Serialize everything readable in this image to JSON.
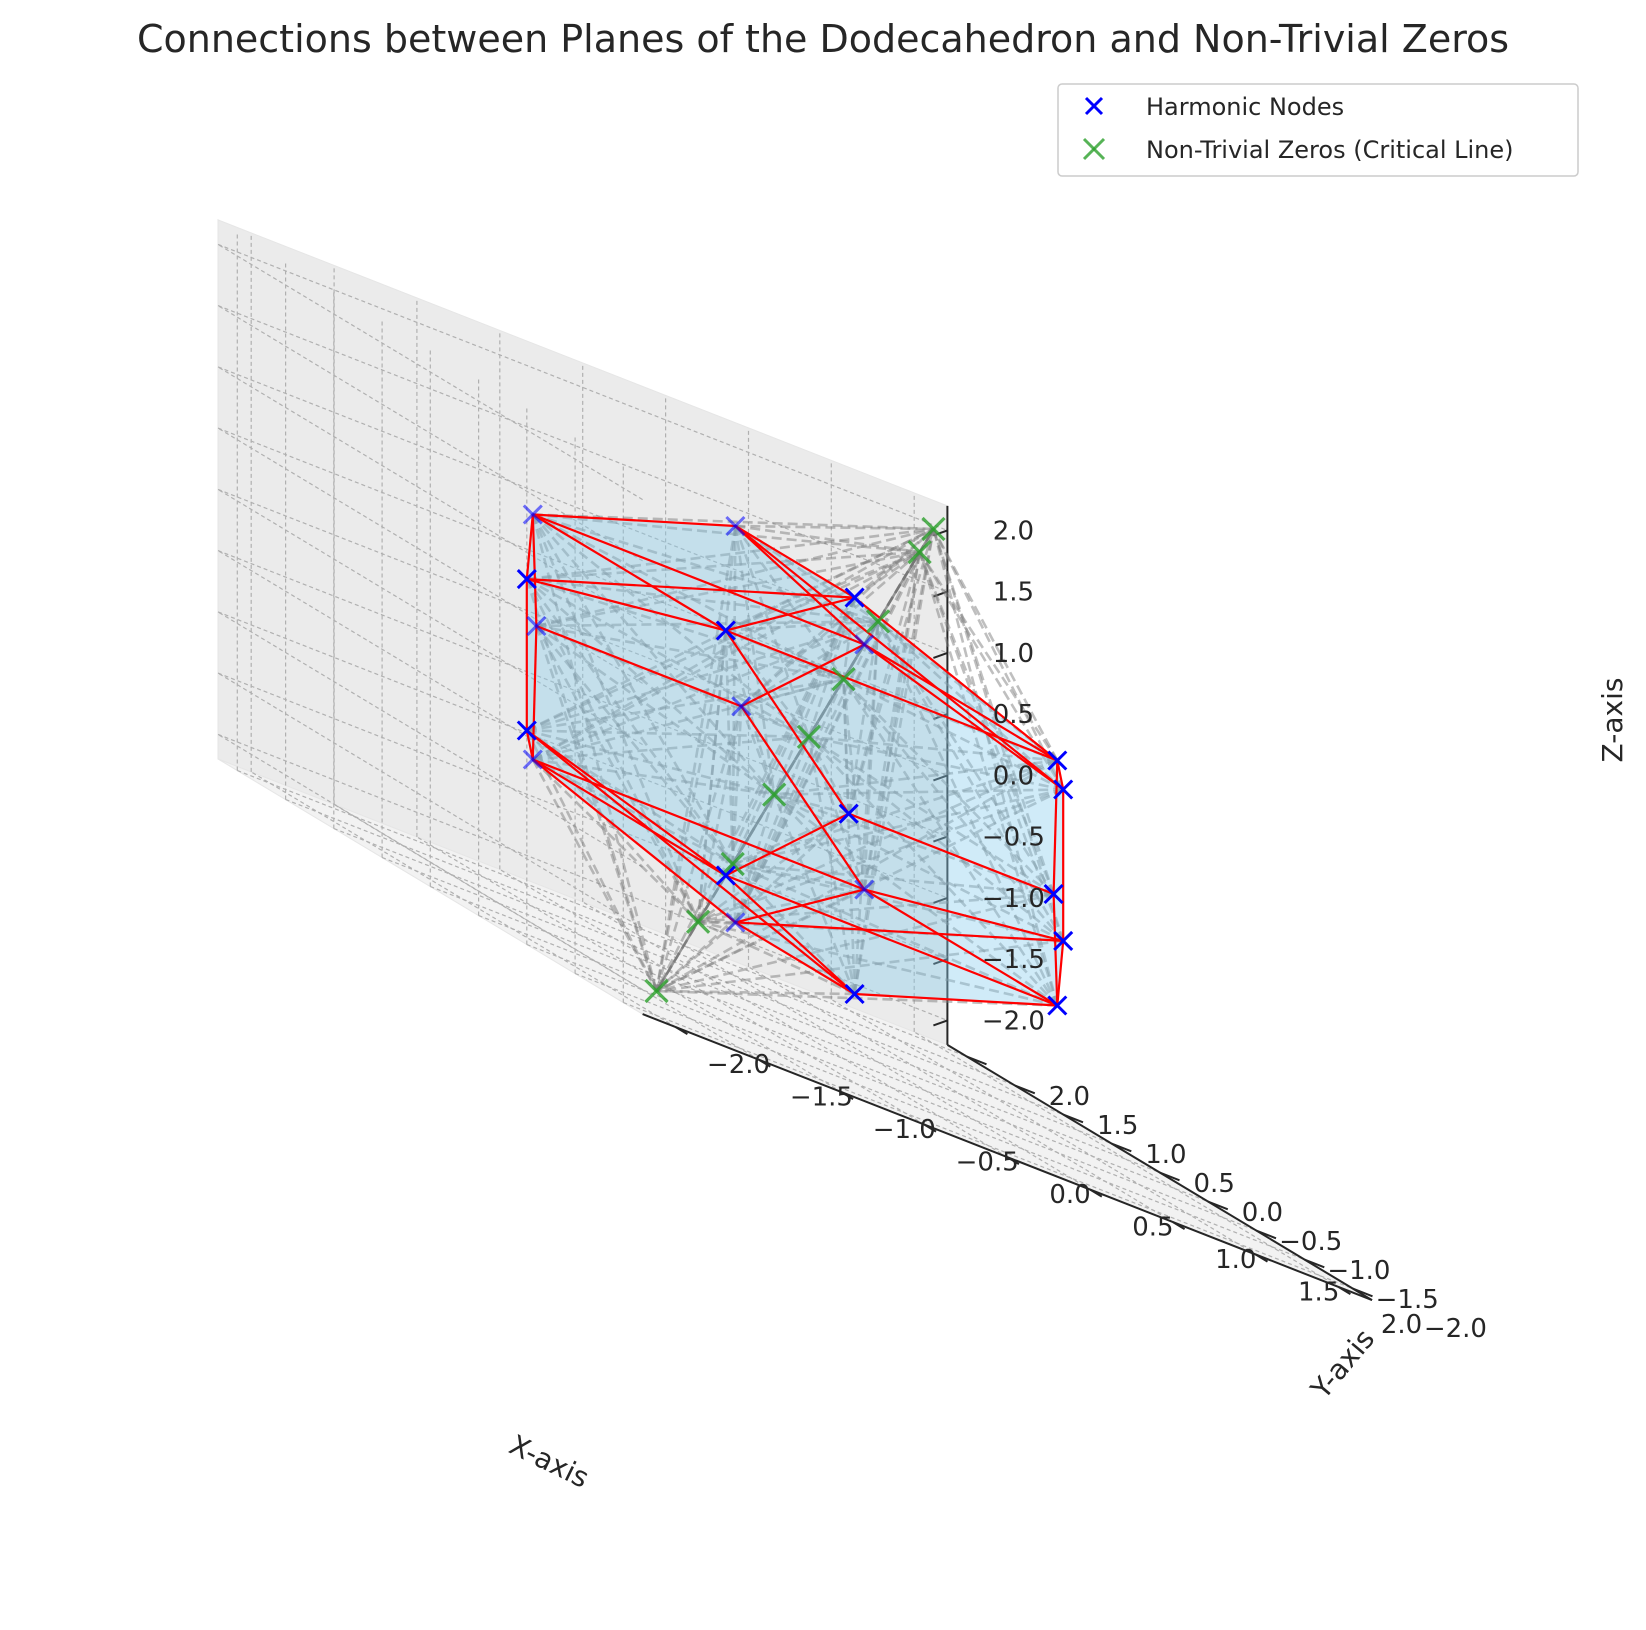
{
  "chart_data": {
    "type": "scatter",
    "projection": "3d",
    "title": "Connections between Planes of the Dodecahedron and Non-Trivial Zeros",
    "xlabel": "X-axis",
    "ylabel": "Y-axis",
    "zlabel": "Z-axis",
    "xlim": [
      -2.2,
      2.2
    ],
    "ylim": [
      -2.2,
      2.2
    ],
    "zlim": [
      -2.2,
      2.2
    ],
    "ticks": [
      -2.0,
      -1.5,
      -1.0,
      -0.5,
      0.0,
      0.5,
      1.0,
      1.5,
      2.0
    ],
    "tick_labels": [
      "−2.0",
      "−1.5",
      "−1.0",
      "−0.5",
      "0.0",
      "0.5",
      "1.0",
      "1.5",
      "2.0"
    ],
    "grid": true,
    "legend_position": "top-right",
    "series": [
      {
        "name": "Harmonic Nodes",
        "marker": "x",
        "color": "#0000ff",
        "points": [
          [
            1,
            1,
            1
          ],
          [
            1,
            1,
            -1
          ],
          [
            1,
            -1,
            1
          ],
          [
            1,
            -1,
            -1
          ],
          [
            -1,
            1,
            1
          ],
          [
            -1,
            1,
            -1
          ],
          [
            -1,
            -1,
            1
          ],
          [
            -1,
            -1,
            -1
          ],
          [
            0,
            0.618,
            1.618
          ],
          [
            0,
            0.618,
            -1.618
          ],
          [
            0,
            -0.618,
            1.618
          ],
          [
            0,
            -0.618,
            -1.618
          ],
          [
            0.618,
            1.618,
            0
          ],
          [
            0.618,
            -1.618,
            0
          ],
          [
            -0.618,
            1.618,
            0
          ],
          [
            -0.618,
            -1.618,
            0
          ],
          [
            1.618,
            0,
            0.618
          ],
          [
            1.618,
            0,
            -0.618
          ],
          [
            -1.618,
            0,
            0.618
          ],
          [
            -1.618,
            0,
            -0.618
          ]
        ]
      },
      {
        "name": "Non-Trivial Zeros (Critical Line)",
        "marker": "x",
        "color": "#2ca02c",
        "points": [
          [
            -2,
            -2,
            -2
          ],
          [
            -1.4,
            -1.4,
            -1.4
          ],
          [
            -0.9,
            -0.9,
            -0.9
          ],
          [
            -0.3,
            -0.3,
            -0.3
          ],
          [
            0.2,
            0.2,
            0.2
          ],
          [
            0.7,
            0.7,
            0.7
          ],
          [
            1.2,
            1.2,
            1.2
          ],
          [
            1.8,
            1.8,
            1.8
          ],
          [
            2,
            2,
            2
          ]
        ]
      }
    ],
    "edges_color": "#ff0000",
    "connections_color": "#808080",
    "face_color": "#87ceeb"
  }
}
